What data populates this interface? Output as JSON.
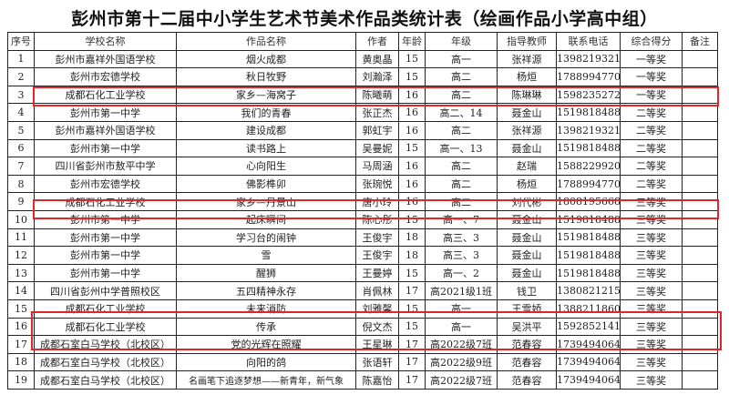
{
  "title": "彭州市第十二届中小学生艺术节美术作品类统计表（绘画作品小学高中组）",
  "headers": [
    "序号",
    "学校名称",
    "作品名称",
    "作者",
    "年龄",
    "年级",
    "指导教师",
    "联系电话",
    "综合得分",
    "备注"
  ],
  "rows": [
    [
      "1",
      "彭州市嘉祥外国语学校",
      "烟火成都",
      "黄奥晶",
      "15",
      "高一",
      "张祥源",
      "13982193217",
      "一等奖",
      ""
    ],
    [
      "2",
      "彭州市宏德学校",
      "秋日牧野",
      "刘瀚泽",
      "15",
      "高二",
      "杨烜",
      "17889947707",
      "一等奖",
      ""
    ],
    [
      "3",
      "成都石化工业学校",
      "家乡—海窝子",
      "陈曦萌",
      "16",
      "高二",
      "陈琳琳",
      "15982352723",
      "一等奖",
      ""
    ],
    [
      "4",
      "彭州市第一中学",
      "我们的青春",
      "张正杰",
      "16",
      "高二、14",
      "聂金山",
      "15198184886",
      "二等奖",
      ""
    ],
    [
      "5",
      "彭州市嘉祥外国语学校",
      "建设成都",
      "郭虹宇",
      "16",
      "高二",
      "张祥源",
      "13982193217",
      "二等奖",
      ""
    ],
    [
      "6",
      "彭州市第一中学",
      "读书路上",
      "吴曼妮",
      "15",
      "高一、13",
      "聂金山",
      "15198184886",
      "二等奖",
      ""
    ],
    [
      "7",
      "四川省彭州市敖平中学",
      "心向阳生",
      "马周涵",
      "16",
      "高二",
      "赵瑞",
      "15882299207",
      "二等奖",
      ""
    ],
    [
      "8",
      "彭州市宏德学校",
      "佛影榫卯",
      "张琬悦",
      "16",
      "高二",
      "杨烜",
      "17889947707",
      "二等奖",
      ""
    ],
    [
      "9",
      "成都石化工业学校",
      "家乡—丹景山",
      "唐小玲",
      "16",
      "高二",
      "刘代彬",
      "18081956682",
      "三等奖",
      ""
    ],
    [
      "10",
      "彭州市第一中学",
      "起床瞬间",
      "陈心彤",
      "15",
      "高一、7",
      "聂金山",
      "15198184886",
      "三等奖",
      ""
    ],
    [
      "11",
      "彭州市第一中学",
      "学习台的闹钟",
      "王俊宇",
      "18",
      "高三、3",
      "聂金山",
      "15198184886",
      "三等奖",
      ""
    ],
    [
      "12",
      "彭州市第一中学",
      "雪",
      "王俊宇",
      "18",
      "高三、3",
      "聂金山",
      "15198184886",
      "三等奖",
      ""
    ],
    [
      "13",
      "彭州市第一中学",
      "醒狮",
      "王曼婷",
      "15",
      "高一、2",
      "聂金山",
      "15198184886",
      "三等奖",
      ""
    ],
    [
      "14",
      "四川省彭州中学普照校区",
      "五四精神永存",
      "肖佩林",
      "17",
      "高2021级1班",
      "钱卫",
      "13808212151",
      "三等奖",
      ""
    ],
    [
      "15",
      "成都石化工业学校",
      "未来消防",
      "刘雅馨",
      "15",
      "高一",
      "王雪娇",
      "13882118608",
      "三等奖",
      ""
    ],
    [
      "16",
      "成都石化工业学校",
      "传承",
      "倪文杰",
      "15",
      "高一",
      "吴洪平",
      "15928521417",
      "三等奖",
      ""
    ],
    [
      "17",
      "成都石室白马学校（北校区）",
      "党的光辉在照耀",
      "王星琳",
      "17",
      "高2022级7班",
      "范春容",
      "17394940642",
      "三等奖",
      ""
    ],
    [
      "18",
      "成都石室白马学校（北校区）",
      "向阳的鸽",
      "张语轩",
      "17",
      "高2022级9班",
      "范春容",
      "17394940642",
      "三等奖",
      ""
    ],
    [
      "19",
      "成都石室白马学校（北校区）",
      "名画笔下追逐梦想——新青年，新气象",
      "陈嘉怡",
      "17",
      "高2022级7班",
      "范春容",
      "17394940642",
      "三等奖",
      ""
    ]
  ],
  "highlight_color": "#e0262b"
}
